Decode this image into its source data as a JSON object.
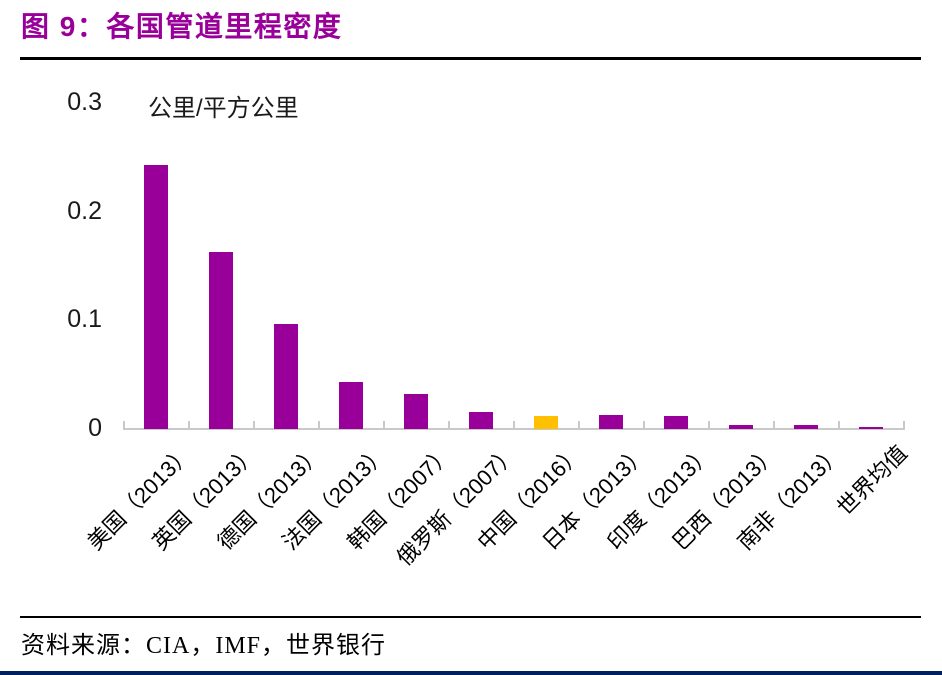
{
  "chart_data": {
    "type": "bar",
    "title": "图 9：各国管道里程密度",
    "unit_label": "公里/平方公里",
    "categories": [
      "美国（2013）",
      "英国（2013）",
      "德国（2013）",
      "法国（2013）",
      "韩国（2007）",
      "俄罗斯（2007）",
      "中国（2016）",
      "日本（2013）",
      "印度（2013）",
      "巴西（2013）",
      "南非（2013）",
      "世界均值"
    ],
    "values": [
      0.243,
      0.163,
      0.097,
      0.043,
      0.032,
      0.016,
      0.012,
      0.013,
      0.012,
      0.004,
      0.004,
      0.002
    ],
    "ylim": [
      0,
      0.3
    ],
    "ytick_values": [
      0,
      0.1,
      0.2,
      0.3
    ],
    "ytick_labels": [
      "0",
      "0.1",
      "0.2",
      "0.3"
    ],
    "xlabel": "",
    "ylabel": "公里/平方公里",
    "grid": false,
    "legend_position": "none",
    "bar_color": "#990099",
    "highlight_index": 6,
    "highlight_color": "#FFC000",
    "axis_color": "#C9C9C9",
    "source": "资料来源：CIA，IMF，世界银行"
  },
  "colors": {
    "title_text": "#990099",
    "header_rule": "#000000",
    "footer_rule": "#000000",
    "bottom_bar": "#002060"
  }
}
